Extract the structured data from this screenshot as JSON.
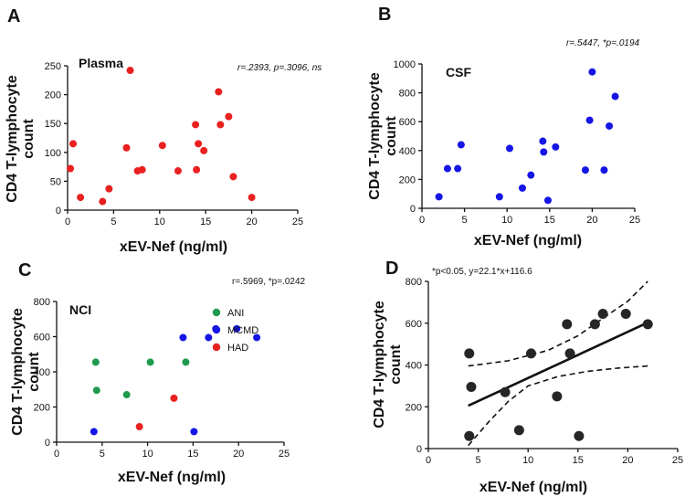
{
  "chart_data": [
    {
      "panel": "A",
      "type": "scatter",
      "inner_label": "Plasma",
      "stat_text": "r=.2393,  p=.3096, ns",
      "xlabel": "xEV-Nef (ng/ml)",
      "ylabel_lines": [
        "CD4 T-lymphocyte",
        "count"
      ],
      "xlim": [
        0,
        25
      ],
      "ylim": [
        0,
        250
      ],
      "xticks": [
        0,
        5,
        10,
        15,
        20,
        25
      ],
      "xtick_labels": [
        "0",
        "5",
        "10",
        "15",
        "20",
        "25"
      ],
      "yticks": [
        0,
        50,
        100,
        150,
        200,
        250
      ],
      "ytick_labels": [
        "0",
        "50",
        "100",
        "150",
        "200",
        "250"
      ],
      "color": "#e8201f",
      "points": [
        [
          0.3,
          72
        ],
        [
          0.6,
          115
        ],
        [
          1.4,
          22
        ],
        [
          3.8,
          15
        ],
        [
          4.5,
          37
        ],
        [
          6.4,
          108
        ],
        [
          6.8,
          242
        ],
        [
          7.6,
          68
        ],
        [
          8.1,
          70
        ],
        [
          10.3,
          112
        ],
        [
          12.0,
          68
        ],
        [
          13.9,
          148
        ],
        [
          14.2,
          115
        ],
        [
          14.0,
          70
        ],
        [
          14.8,
          103
        ],
        [
          16.4,
          205
        ],
        [
          16.6,
          148
        ],
        [
          17.5,
          162
        ],
        [
          18.0,
          58
        ],
        [
          20.0,
          22
        ]
      ]
    },
    {
      "panel": "B",
      "type": "scatter",
      "inner_label": "CSF",
      "stat_text": "r=.5447, *p=.0194",
      "xlabel": "xEV-Nef (ng/ml)",
      "ylabel_lines": [
        "CD4 T-lymphocyte",
        "count"
      ],
      "xlim": [
        0,
        25
      ],
      "ylim": [
        0,
        1000
      ],
      "xticks": [
        0,
        5,
        10,
        15,
        20,
        25
      ],
      "xtick_labels": [
        "0",
        "5",
        "10",
        "15",
        "20",
        "25"
      ],
      "yticks": [
        0,
        200,
        400,
        600,
        800,
        1000
      ],
      "ytick_labels": [
        "0",
        "200",
        "400",
        "600",
        "800",
        "1000"
      ],
      "color": "#1515e6",
      "points": [
        [
          2.0,
          80
        ],
        [
          3.0,
          275
        ],
        [
          4.2,
          275
        ],
        [
          4.6,
          440
        ],
        [
          9.1,
          80
        ],
        [
          10.3,
          415
        ],
        [
          11.8,
          140
        ],
        [
          12.8,
          230
        ],
        [
          14.2,
          465
        ],
        [
          14.3,
          390
        ],
        [
          14.8,
          55
        ],
        [
          15.7,
          425
        ],
        [
          19.2,
          265
        ],
        [
          19.7,
          610
        ],
        [
          20.0,
          945
        ],
        [
          21.4,
          265
        ],
        [
          22.0,
          570
        ],
        [
          22.7,
          775
        ]
      ]
    },
    {
      "panel": "C",
      "type": "scatter",
      "inner_label": "NCI",
      "stat_text": "r=.5969, *p=.0242",
      "xlabel": "xEV-Nef (ng/ml)",
      "ylabel_lines": [
        "CD4 T-lymphocyte",
        "count"
      ],
      "xlim": [
        0,
        25
      ],
      "ylim": [
        0,
        800
      ],
      "xticks": [
        0,
        5,
        10,
        15,
        20,
        25
      ],
      "xtick_labels": [
        "0",
        "5",
        "10",
        "15",
        "20",
        "25"
      ],
      "yticks": [
        0,
        200,
        400,
        600,
        800
      ],
      "ytick_labels": [
        "0",
        "200",
        "400",
        "600",
        "800"
      ],
      "series": [
        {
          "name": "ANI",
          "color": "#1f9a4e",
          "points": [
            [
              4.3,
              455
            ],
            [
              4.4,
              295
            ],
            [
              7.7,
              270
            ],
            [
              10.3,
              455
            ],
            [
              14.2,
              455
            ]
          ]
        },
        {
          "name": "MCMD",
          "color": "#1515e6",
          "points": [
            [
              4.1,
              60
            ],
            [
              13.9,
              595
            ],
            [
              15.1,
              60
            ],
            [
              16.7,
              595
            ],
            [
              17.5,
              645
            ],
            [
              19.8,
              645
            ],
            [
              22.0,
              595
            ]
          ]
        },
        {
          "name": "HAD",
          "color": "#e8201f",
          "points": [
            [
              9.1,
              88
            ],
            [
              12.9,
              250
            ]
          ]
        }
      ]
    },
    {
      "panel": "D",
      "type": "scatter",
      "stat_text": "*p<0.05, y=22.1*x+116.6",
      "xlabel": "xEV-Nef (ng/ml)",
      "ylabel_lines": [
        "CD4 T-lymphocyte",
        "count"
      ],
      "xlim": [
        0,
        25
      ],
      "ylim": [
        0,
        800
      ],
      "xticks": [
        0,
        5,
        10,
        15,
        20,
        25
      ],
      "xtick_labels": [
        "0",
        "5",
        "10",
        "15",
        "20",
        "25"
      ],
      "yticks": [
        0,
        200,
        400,
        600,
        800
      ],
      "ytick_labels": [
        "0",
        "200",
        "400",
        "600",
        "800"
      ],
      "color": "#262626",
      "points": [
        [
          4.1,
          455
        ],
        [
          4.3,
          295
        ],
        [
          4.1,
          60
        ],
        [
          7.7,
          270
        ],
        [
          9.1,
          88
        ],
        [
          10.3,
          455
        ],
        [
          12.9,
          250
        ],
        [
          13.9,
          595
        ],
        [
          14.2,
          455
        ],
        [
          15.1,
          60
        ],
        [
          16.7,
          595
        ],
        [
          17.5,
          645
        ],
        [
          19.8,
          645
        ],
        [
          22.0,
          595
        ]
      ],
      "fit": {
        "slope": 22.1,
        "intercept": 116.6,
        "x_range": [
          4.0,
          22.0
        ]
      },
      "ci_upper": [
        [
          4.0,
          395
        ],
        [
          8.0,
          420
        ],
        [
          12.0,
          470
        ],
        [
          15.0,
          540
        ],
        [
          18.0,
          640
        ],
        [
          20.0,
          705
        ],
        [
          22.0,
          800
        ]
      ],
      "ci_lower": [
        [
          4.0,
          15
        ],
        [
          6.0,
          125
        ],
        [
          8.0,
          225
        ],
        [
          10.0,
          300
        ],
        [
          13.0,
          345
        ],
        [
          16.0,
          370
        ],
        [
          19.0,
          385
        ],
        [
          22.0,
          395
        ]
      ]
    }
  ]
}
